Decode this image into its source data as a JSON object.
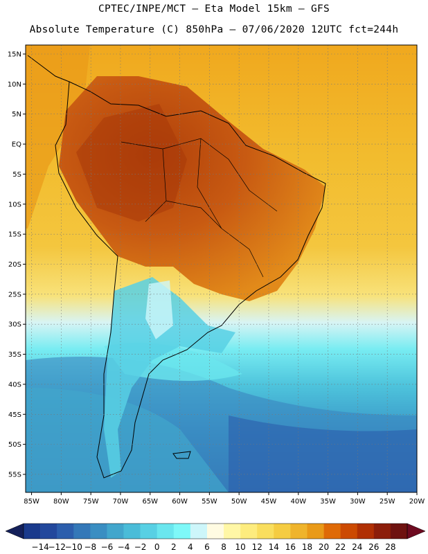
{
  "header": {
    "line1": "CPTEC/INPE/MCT –  Eta Model 15km – GFS",
    "line2": "Absolute Temperature (C) 850hPa – 07/06/2020 12UTC fct=244h"
  },
  "map": {
    "lat_labels": [
      "15N",
      "10N",
      "5N",
      "EQ",
      "5S",
      "10S",
      "15S",
      "20S",
      "25S",
      "30S",
      "35S",
      "40S",
      "45S",
      "50S",
      "55S"
    ],
    "lon_labels": [
      "85W",
      "80W",
      "75W",
      "70W",
      "65W",
      "60W",
      "55W",
      "50W",
      "45W",
      "40W",
      "35W",
      "30W",
      "25W",
      "20W"
    ],
    "lat_range": [
      -58,
      16.5
    ],
    "lon_range": [
      -86,
      -20
    ],
    "grid": "dotted"
  },
  "colorbar": {
    "labels": [
      "-14",
      "-12",
      "-10",
      "-8",
      "-6",
      "-4",
      "-2",
      "0",
      "2",
      "4",
      "6",
      "8",
      "10",
      "12",
      "14",
      "16",
      "18",
      "20",
      "22",
      "24",
      "26",
      "28"
    ],
    "colors": [
      "#1a3a8c",
      "#23489c",
      "#2c5eac",
      "#3478b8",
      "#3a8ec2",
      "#42a6cc",
      "#4abcd8",
      "#58d0e4",
      "#6ae6ee",
      "#7ef8f8",
      "#cdf6fa",
      "#fffbe2",
      "#fff7a6",
      "#fdec7e",
      "#f9de5e",
      "#f5cc42",
      "#efb42c",
      "#e99a18",
      "#df6a06",
      "#cc4a02",
      "#b03004",
      "#8c1e0a",
      "#6e1210"
    ],
    "left_arrow_color": "#14205a",
    "right_arrow_color": "#6e0a20"
  },
  "colors": {
    "continent_hot": "#c85a12",
    "ocean_warm": "#f0b22a",
    "ocean_cold": "#3a8ec2"
  }
}
